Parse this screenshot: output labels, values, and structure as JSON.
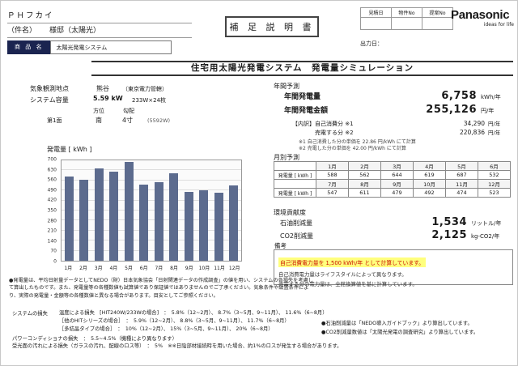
{
  "colors": {
    "bar": "#5c6b8e",
    "highlight_bg": "#ffff7d",
    "highlight_text": "#cc1100",
    "product_label_bg": "#1b2450"
  },
  "header": {
    "company": "ＰＨフカイ",
    "subject_label": "（件名）",
    "subject_value": "様邸（太陽光）",
    "product_label": "商 品 名",
    "product_value": "太陽光発電システム",
    "stamp": "補 足 説 明 書",
    "brand": "Panasonic",
    "brand_tagline": "ideas for life",
    "info_table_headers": [
      "見積日",
      "物件No",
      "提案No"
    ],
    "output_label": "出力日："
  },
  "title": "住宅用太陽光発電システム　発電量シミュレーション",
  "system_info": {
    "station_label": "気象観測地点",
    "station_value": "熊谷",
    "station_note": "（東京電力管轄）",
    "capacity_label": "システム容量",
    "capacity_value": "5.59 kW",
    "capacity_note": "233W×24枚",
    "col_orientation": "方位",
    "col_slope": "勾配",
    "surface_label": "第1面",
    "surface_orientation": "南",
    "surface_slope": "4寸",
    "surface_watt": "(5592W)"
  },
  "chart_data": {
    "type": "bar",
    "title": "発電量 [ kWh ]",
    "categories": [
      "1月",
      "2月",
      "3月",
      "4月",
      "5月",
      "6月",
      "7月",
      "8月",
      "9月",
      "10月",
      "11月",
      "12月"
    ],
    "values": [
      588,
      562,
      644,
      619,
      687,
      532,
      547,
      611,
      479,
      492,
      474,
      523
    ],
    "xlabel": "",
    "ylabel": "発電量 [ kWh ]",
    "ylim": [
      0,
      700
    ],
    "ytick_step": 70,
    "grid": true,
    "legend": false,
    "bar_color": "#5c6b8e"
  },
  "annual": {
    "section_title": "年間予測",
    "gen_label": "年間発電量",
    "gen_value": "6,758",
    "gen_unit": "kWh/年",
    "amount_label": "年間発電金額",
    "amount_value": "255,126",
    "amount_unit": "円/年",
    "breakdown_label": "【内訳】自己消費分 ※1",
    "breakdown_value": "34,290",
    "breakdown_unit": "円/年",
    "sell_label": "売電する分 ※2",
    "sell_value": "220,836",
    "sell_unit": "円/年",
    "note1": "※1 自己消費した分の単価を 22.86 円/kWh にて計算",
    "note2": "※2 売電した分の単価を 42.00 円/kWh にて計算"
  },
  "monthly": {
    "section_title": "月別予測",
    "row_label": "発電量 [ kWh ]",
    "months_row1": [
      "1月",
      "2月",
      "3月",
      "4月",
      "5月",
      "6月"
    ],
    "values_row1": [
      "588",
      "562",
      "644",
      "619",
      "687",
      "532"
    ],
    "months_row2": [
      "7月",
      "8月",
      "9月",
      "10月",
      "11月",
      "12月"
    ],
    "values_row2": [
      "547",
      "611",
      "479",
      "492",
      "474",
      "523"
    ]
  },
  "environment": {
    "section_title": "環境貢献度",
    "oil_label": "石油削減量",
    "oil_value": "1,534",
    "oil_unit": "リットル/年",
    "co2_label": "CO2削減量",
    "co2_value": "2,125",
    "co2_unit": "kg-CO2/年"
  },
  "remarks": {
    "title": "備考",
    "highlight": "自己消費電力量を 1,500 kWh/年 として計算しています。",
    "line2": "自己消費電力量はライフスタイルによって異なります。",
    "line3": "売電する分の電力量は、全館換算値を基に計算しています。"
  },
  "footer": {
    "main_note": "●発電量は、平均日射量データとしてNEDO（財）日本気象協会「日射関連データの作成調査」の値を用い、システムの各損失を考慮して算出したものです。また、発電量等の各種数値も試算値であり保証値ではありませんのでご了承ください。気象条件や設置条件により、実際の発電量・金額等の各種数値と異なる場合があります。目安としてご参照ください。",
    "loss_title": "システムの損失",
    "loss_lines": [
      "温度による損失　[HIT240W/233Wの場合]　：　5.8%（12~2月）、 8.7%（3~5月、9~11月）、 11.6%（6~8月）",
      "［他のHITシリーズの場合］　：　5.9%（12~2月）、 8.8%（3~5月、9~11月）、 11.7%（6~8月）",
      "［多結晶タイプの場合］　：　10%（12~2月）、 15%（3~5月、9~11月）、 20%（6~8月）",
      "パワーコンディショナの損失　：　5.5~4.5%（機種により異なります）",
      "受光面の汚れによる損失（ガラスの汚れ、配線のロス等）　：　5%　※※日陰部材接続時を用いた場合、約1%のロスが発生する場合があります。"
    ],
    "right_notes": [
      "●石油削減量は「NEDO導入ガイドブック」より算出しています。",
      "●CO2削減量数値は「太陽光発電の調査研究」より算出しています。"
    ]
  }
}
